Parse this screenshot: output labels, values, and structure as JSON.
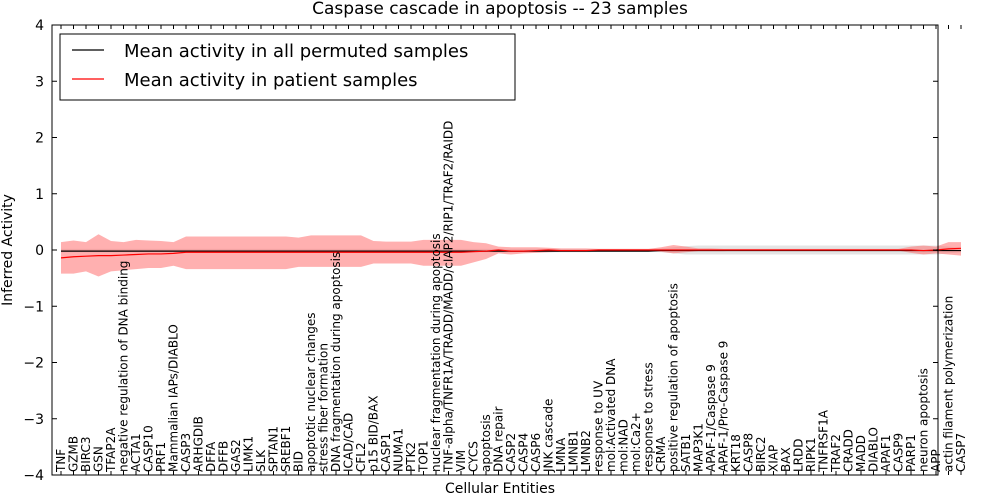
{
  "chart_data": {
    "type": "line",
    "title": "Caspase cascade in apoptosis -- 23 samples",
    "xlabel": "Cellular Entities",
    "ylabel": "Inferred Activity",
    "ylim": [
      -4,
      4
    ],
    "yticks": [
      -4,
      -3,
      -2,
      -1,
      0,
      1,
      2,
      3,
      4
    ],
    "legend_position": "top-left",
    "categories": [
      "TNF",
      "GZMB",
      "BIRC3",
      "GSN",
      "TFAP2A",
      "negative regulation of DNA binding",
      "ACTA1",
      "CASP10",
      "PRF1",
      "Mammalian IAPs/DIABLO",
      "CASP3",
      "ARHGDIB",
      "DFFA",
      "DFFB",
      "GAS2",
      "LIMK1",
      "SLK",
      "SPTAN1",
      "SREBF1",
      "BID",
      "apoptotic nuclear changes",
      "stress fiber formation",
      "DNA fragmentation during apoptosis",
      "ICAD/CAD",
      "CFL2",
      "p15 BID/BAX",
      "CASP1",
      "NUMA1",
      "PTK2",
      "TOP1",
      "nuclear fragmentation during apoptosis",
      "TNF-alpha/TNFR1A/TRADD/MADD/cIAP2/RIP1/TRAF2/RAIDD",
      "VIM",
      "CYCS",
      "apoptosis",
      "DNA repair",
      "CASP2",
      "CASP4",
      "CASP6",
      "JNK cascade",
      "LMNA",
      "LMNB1",
      "LMNB2",
      "response to UV",
      "mol:Activated DNA",
      "mol:NAD",
      "mol:Ca2+",
      "response to stress",
      "CRMA",
      "positive regulation of apoptosis",
      "SATB1",
      "MAP3K1",
      "APAF-1/Caspase 9",
      "APAF-1/Pro-Caspase 9",
      "KRT18",
      "CASP8",
      "BIRC2",
      "XIAP",
      "BAX",
      "LRDD",
      "RIPK1",
      "TNFRSF1A",
      "TRAF2",
      "CRADD",
      "MADD",
      "DIABLO",
      "APAF1",
      "CASP9",
      "PARP1",
      "neuron apoptosis",
      "APP",
      "actin filament polymerization",
      "CASP7"
    ],
    "series": [
      {
        "name": "Mean activity in all permuted samples",
        "color": "#000000",
        "band_color": "#bbbbbb",
        "mean": [
          -0.02,
          -0.02,
          -0.02,
          -0.02,
          -0.02,
          -0.02,
          -0.02,
          -0.02,
          -0.02,
          -0.02,
          -0.02,
          -0.02,
          -0.02,
          -0.02,
          -0.02,
          -0.02,
          -0.02,
          -0.02,
          -0.02,
          -0.02,
          -0.02,
          -0.02,
          -0.02,
          -0.02,
          -0.02,
          -0.02,
          -0.02,
          -0.02,
          -0.02,
          -0.02,
          -0.02,
          -0.02,
          -0.02,
          -0.02,
          -0.02,
          -0.02,
          -0.02,
          -0.02,
          -0.02,
          -0.02,
          -0.02,
          -0.02,
          -0.02,
          -0.02,
          -0.02,
          -0.02,
          -0.02,
          -0.02,
          -0.01,
          -0.01,
          -0.01,
          -0.01,
          -0.01,
          -0.01,
          -0.01,
          -0.01,
          -0.01,
          -0.01,
          -0.01,
          -0.01,
          -0.01,
          -0.01,
          -0.01,
          -0.01,
          -0.01,
          -0.01,
          -0.01,
          -0.01,
          -0.01,
          -0.01,
          -0.01,
          -0.01,
          -0.01
        ],
        "lower": [
          -0.04,
          -0.04,
          -0.04,
          -0.04,
          -0.04,
          -0.04,
          -0.04,
          -0.04,
          -0.04,
          -0.04,
          -0.04,
          -0.04,
          -0.04,
          -0.04,
          -0.04,
          -0.04,
          -0.04,
          -0.04,
          -0.04,
          -0.04,
          -0.04,
          -0.04,
          -0.04,
          -0.04,
          -0.04,
          -0.04,
          -0.04,
          -0.04,
          -0.04,
          -0.04,
          -0.04,
          -0.04,
          -0.04,
          -0.04,
          -0.04,
          -0.04,
          -0.04,
          -0.04,
          -0.04,
          -0.04,
          -0.04,
          -0.04,
          -0.04,
          -0.03,
          -0.03,
          -0.03,
          -0.03,
          -0.03,
          -0.04,
          -0.06,
          -0.08,
          -0.08,
          -0.08,
          -0.08,
          -0.08,
          -0.08,
          -0.08,
          -0.08,
          -0.08,
          -0.08,
          -0.08,
          -0.08,
          -0.08,
          -0.08,
          -0.08,
          -0.08,
          -0.08,
          -0.08,
          -0.08,
          -0.08,
          -0.08,
          -0.06,
          -0.04
        ],
        "upper": [
          0.02,
          0.02,
          0.02,
          0.02,
          0.02,
          0.02,
          0.02,
          0.02,
          0.02,
          0.02,
          0.02,
          0.02,
          0.02,
          0.02,
          0.02,
          0.02,
          0.02,
          0.02,
          0.02,
          0.02,
          0.02,
          0.02,
          0.02,
          0.02,
          0.02,
          0.02,
          0.02,
          0.02,
          0.02,
          0.02,
          0.02,
          0.02,
          0.02,
          0.02,
          0.02,
          0.02,
          0.02,
          0.02,
          0.02,
          0.02,
          0.02,
          0.02,
          0.02,
          0.02,
          0.02,
          0.02,
          0.02,
          0.02,
          0.03,
          0.05,
          0.07,
          0.08,
          0.08,
          0.08,
          0.08,
          0.08,
          0.08,
          0.08,
          0.08,
          0.08,
          0.08,
          0.08,
          0.08,
          0.08,
          0.08,
          0.08,
          0.08,
          0.08,
          0.08,
          0.08,
          0.08,
          0.06,
          0.04
        ]
      },
      {
        "name": "Mean activity in patient samples",
        "color": "#ff0000",
        "band_color": "#ff7070",
        "mean": [
          -0.14,
          -0.12,
          -0.11,
          -0.1,
          -0.1,
          -0.09,
          -0.08,
          -0.07,
          -0.07,
          -0.06,
          -0.04,
          -0.04,
          -0.04,
          -0.04,
          -0.04,
          -0.04,
          -0.04,
          -0.04,
          -0.04,
          -0.04,
          -0.04,
          -0.04,
          -0.04,
          -0.04,
          -0.04,
          -0.04,
          -0.04,
          -0.04,
          -0.04,
          -0.04,
          -0.04,
          -0.04,
          -0.04,
          -0.03,
          -0.02,
          0.0,
          -0.02,
          -0.02,
          -0.01,
          0.0,
          -0.01,
          -0.01,
          -0.01,
          0.0,
          0.0,
          0.0,
          0.0,
          0.0,
          0.0,
          0.0,
          0.0,
          0.0,
          0.0,
          0.0,
          0.0,
          0.0,
          0.0,
          0.0,
          0.0,
          0.0,
          0.0,
          0.0,
          0.0,
          0.0,
          0.0,
          0.0,
          0.0,
          0.0,
          0.0,
          -0.01,
          0.0,
          0.02,
          0.03
        ],
        "lower": [
          -0.42,
          -0.42,
          -0.38,
          -0.47,
          -0.38,
          -0.36,
          -0.34,
          -0.32,
          -0.32,
          -0.28,
          -0.34,
          -0.34,
          -0.34,
          -0.34,
          -0.34,
          -0.34,
          -0.34,
          -0.34,
          -0.34,
          -0.3,
          -0.3,
          -0.3,
          -0.3,
          -0.3,
          -0.3,
          -0.24,
          -0.24,
          -0.24,
          -0.24,
          -0.28,
          -0.28,
          -0.28,
          -0.28,
          -0.22,
          -0.16,
          -0.06,
          -0.08,
          -0.06,
          -0.05,
          -0.04,
          -0.03,
          -0.03,
          -0.03,
          -0.02,
          -0.01,
          -0.01,
          -0.01,
          -0.01,
          -0.03,
          -0.06,
          -0.04,
          -0.02,
          -0.02,
          -0.02,
          -0.01,
          -0.01,
          -0.01,
          -0.01,
          -0.01,
          -0.01,
          -0.01,
          -0.01,
          -0.01,
          -0.01,
          -0.01,
          -0.01,
          -0.01,
          -0.01,
          -0.05,
          -0.08,
          -0.06,
          -0.08,
          -0.1
        ],
        "upper": [
          0.14,
          0.17,
          0.14,
          0.28,
          0.16,
          0.14,
          0.18,
          0.17,
          0.16,
          0.14,
          0.24,
          0.24,
          0.24,
          0.24,
          0.24,
          0.24,
          0.24,
          0.24,
          0.24,
          0.22,
          0.26,
          0.26,
          0.26,
          0.26,
          0.26,
          0.16,
          0.15,
          0.15,
          0.15,
          0.18,
          0.18,
          0.18,
          0.18,
          0.14,
          0.12,
          0.06,
          0.05,
          0.05,
          0.05,
          0.04,
          0.03,
          0.03,
          0.03,
          0.02,
          0.02,
          0.02,
          0.02,
          0.02,
          0.05,
          0.09,
          0.06,
          0.03,
          0.03,
          0.02,
          0.02,
          0.02,
          0.02,
          0.02,
          0.02,
          0.02,
          0.02,
          0.02,
          0.02,
          0.02,
          0.02,
          0.02,
          0.02,
          0.02,
          0.06,
          0.08,
          0.06,
          0.14,
          0.14
        ]
      }
    ]
  }
}
